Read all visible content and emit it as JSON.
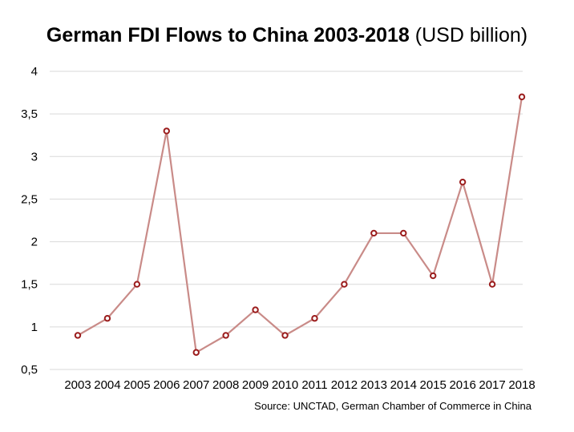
{
  "chart_data": {
    "type": "line",
    "title": "German FDI Flows to China 2003-2018",
    "subtitle": "(USD billion)",
    "xlabel": "",
    "ylabel": "",
    "categories": [
      "2003",
      "2004",
      "2005",
      "2006",
      "2007",
      "2008",
      "2009",
      "2010",
      "2011",
      "2012",
      "2013",
      "2014",
      "2015",
      "2016",
      "2017",
      "2018"
    ],
    "series": [
      {
        "values": [
          0.9,
          1.1,
          1.5,
          3.3,
          0.7,
          0.9,
          1.2,
          0.9,
          1.1,
          1.5,
          2.1,
          2.1,
          1.6,
          2.7,
          1.5,
          3.7
        ]
      }
    ],
    "ylim": [
      0.5,
      4
    ],
    "yticks": [
      0.5,
      1,
      1.5,
      2,
      2.5,
      3,
      3.5,
      4
    ],
    "ytick_labels": [
      "0,5",
      "1",
      "1,5",
      "2",
      "2,5",
      "3",
      "3,5",
      "4"
    ],
    "grid": true,
    "legend": "none",
    "colors": {
      "line": "#c98b88",
      "marker_edge": "#9b1c1c",
      "marker_fill": "#ffffff",
      "grid": "#d9d9d9"
    },
    "source": "Source: UNCTAD, German Chamber of Commerce in China"
  }
}
